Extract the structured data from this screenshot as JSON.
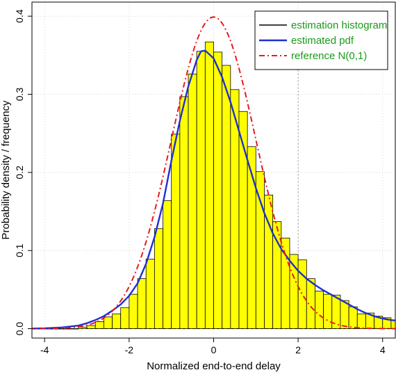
{
  "chart_data": {
    "type": "bar",
    "title": "",
    "xlabel": "Normalized end-to-end delay",
    "ylabel": "Probability density / frequency",
    "xlim": [
      -4.3,
      4.3
    ],
    "ylim": [
      -0.012,
      0.418
    ],
    "grid": true,
    "legend_position": "top-right",
    "x_ticks": [
      {
        "value": -4,
        "label": "-4"
      },
      {
        "value": -2,
        "label": "-2"
      },
      {
        "value": 0,
        "label": "0"
      },
      {
        "value": 2,
        "label": "2"
      },
      {
        "value": 4,
        "label": "4"
      }
    ],
    "y_ticks": [
      {
        "value": 0.0,
        "label": "0.0"
      },
      {
        "value": 0.1,
        "label": "0.1"
      },
      {
        "value": 0.2,
        "label": "0.2"
      },
      {
        "value": 0.3,
        "label": "0.3"
      },
      {
        "value": 0.4,
        "label": "0.4"
      }
    ],
    "histogram": {
      "name": "estimation histogram",
      "color": "#ffff00",
      "edge_color": "#000000",
      "bin_edges": [
        -4.4,
        -4.2,
        -4.0,
        -3.8,
        -3.6,
        -3.4,
        -3.2,
        -3.0,
        -2.8,
        -2.6,
        -2.4,
        -2.2,
        -2.0,
        -1.8,
        -1.6,
        -1.4,
        -1.2,
        -1.0,
        -0.8,
        -0.6,
        -0.4,
        -0.2,
        0.0,
        0.2,
        0.4,
        0.6,
        0.8,
        1.0,
        1.2,
        1.4,
        1.6,
        1.8,
        2.0,
        2.2,
        2.4,
        2.6,
        2.8,
        3.0,
        3.2,
        3.4,
        3.6,
        3.8,
        4.0,
        4.2,
        4.4
      ],
      "values": [
        0.0,
        0.0,
        0.0,
        0.0,
        0.0,
        0.0,
        0.002,
        0.004,
        0.009,
        0.015,
        0.019,
        0.027,
        0.044,
        0.064,
        0.089,
        0.128,
        0.164,
        0.249,
        0.297,
        0.326,
        0.355,
        0.367,
        0.354,
        0.337,
        0.306,
        0.278,
        0.233,
        0.201,
        0.171,
        0.137,
        0.116,
        0.095,
        0.088,
        0.064,
        0.048,
        0.044,
        0.043,
        0.036,
        0.028,
        0.019,
        0.02,
        0.016,
        0.014,
        0.011
      ]
    },
    "series": [
      {
        "name": "estimated pdf",
        "color": "#1f2fd0",
        "style": "solid",
        "x": [
          -4.4,
          -4.0,
          -3.6,
          -3.2,
          -3.0,
          -2.8,
          -2.6,
          -2.4,
          -2.2,
          -2.0,
          -1.8,
          -1.6,
          -1.4,
          -1.2,
          -1.0,
          -0.8,
          -0.6,
          -0.4,
          -0.3,
          -0.2,
          0.0,
          0.2,
          0.4,
          0.6,
          0.8,
          1.0,
          1.2,
          1.4,
          1.6,
          1.8,
          2.0,
          2.2,
          2.4,
          2.6,
          2.8,
          3.0,
          3.2,
          3.4,
          3.6,
          3.8,
          4.0,
          4.2,
          4.4
        ],
        "values": [
          0.0,
          0.0005,
          0.0015,
          0.004,
          0.007,
          0.011,
          0.016,
          0.023,
          0.031,
          0.042,
          0.058,
          0.083,
          0.117,
          0.16,
          0.215,
          0.266,
          0.31,
          0.344,
          0.355,
          0.356,
          0.346,
          0.322,
          0.29,
          0.253,
          0.216,
          0.18,
          0.148,
          0.122,
          0.102,
          0.087,
          0.074,
          0.064,
          0.056,
          0.049,
          0.043,
          0.037,
          0.031,
          0.025,
          0.02,
          0.016,
          0.013,
          0.011,
          0.01
        ]
      },
      {
        "name": "reference N(0,1)",
        "color": "#e8191a",
        "style": "dashdot",
        "function": "standard normal density",
        "x_range": [
          -4.4,
          4.4
        ]
      }
    ]
  }
}
